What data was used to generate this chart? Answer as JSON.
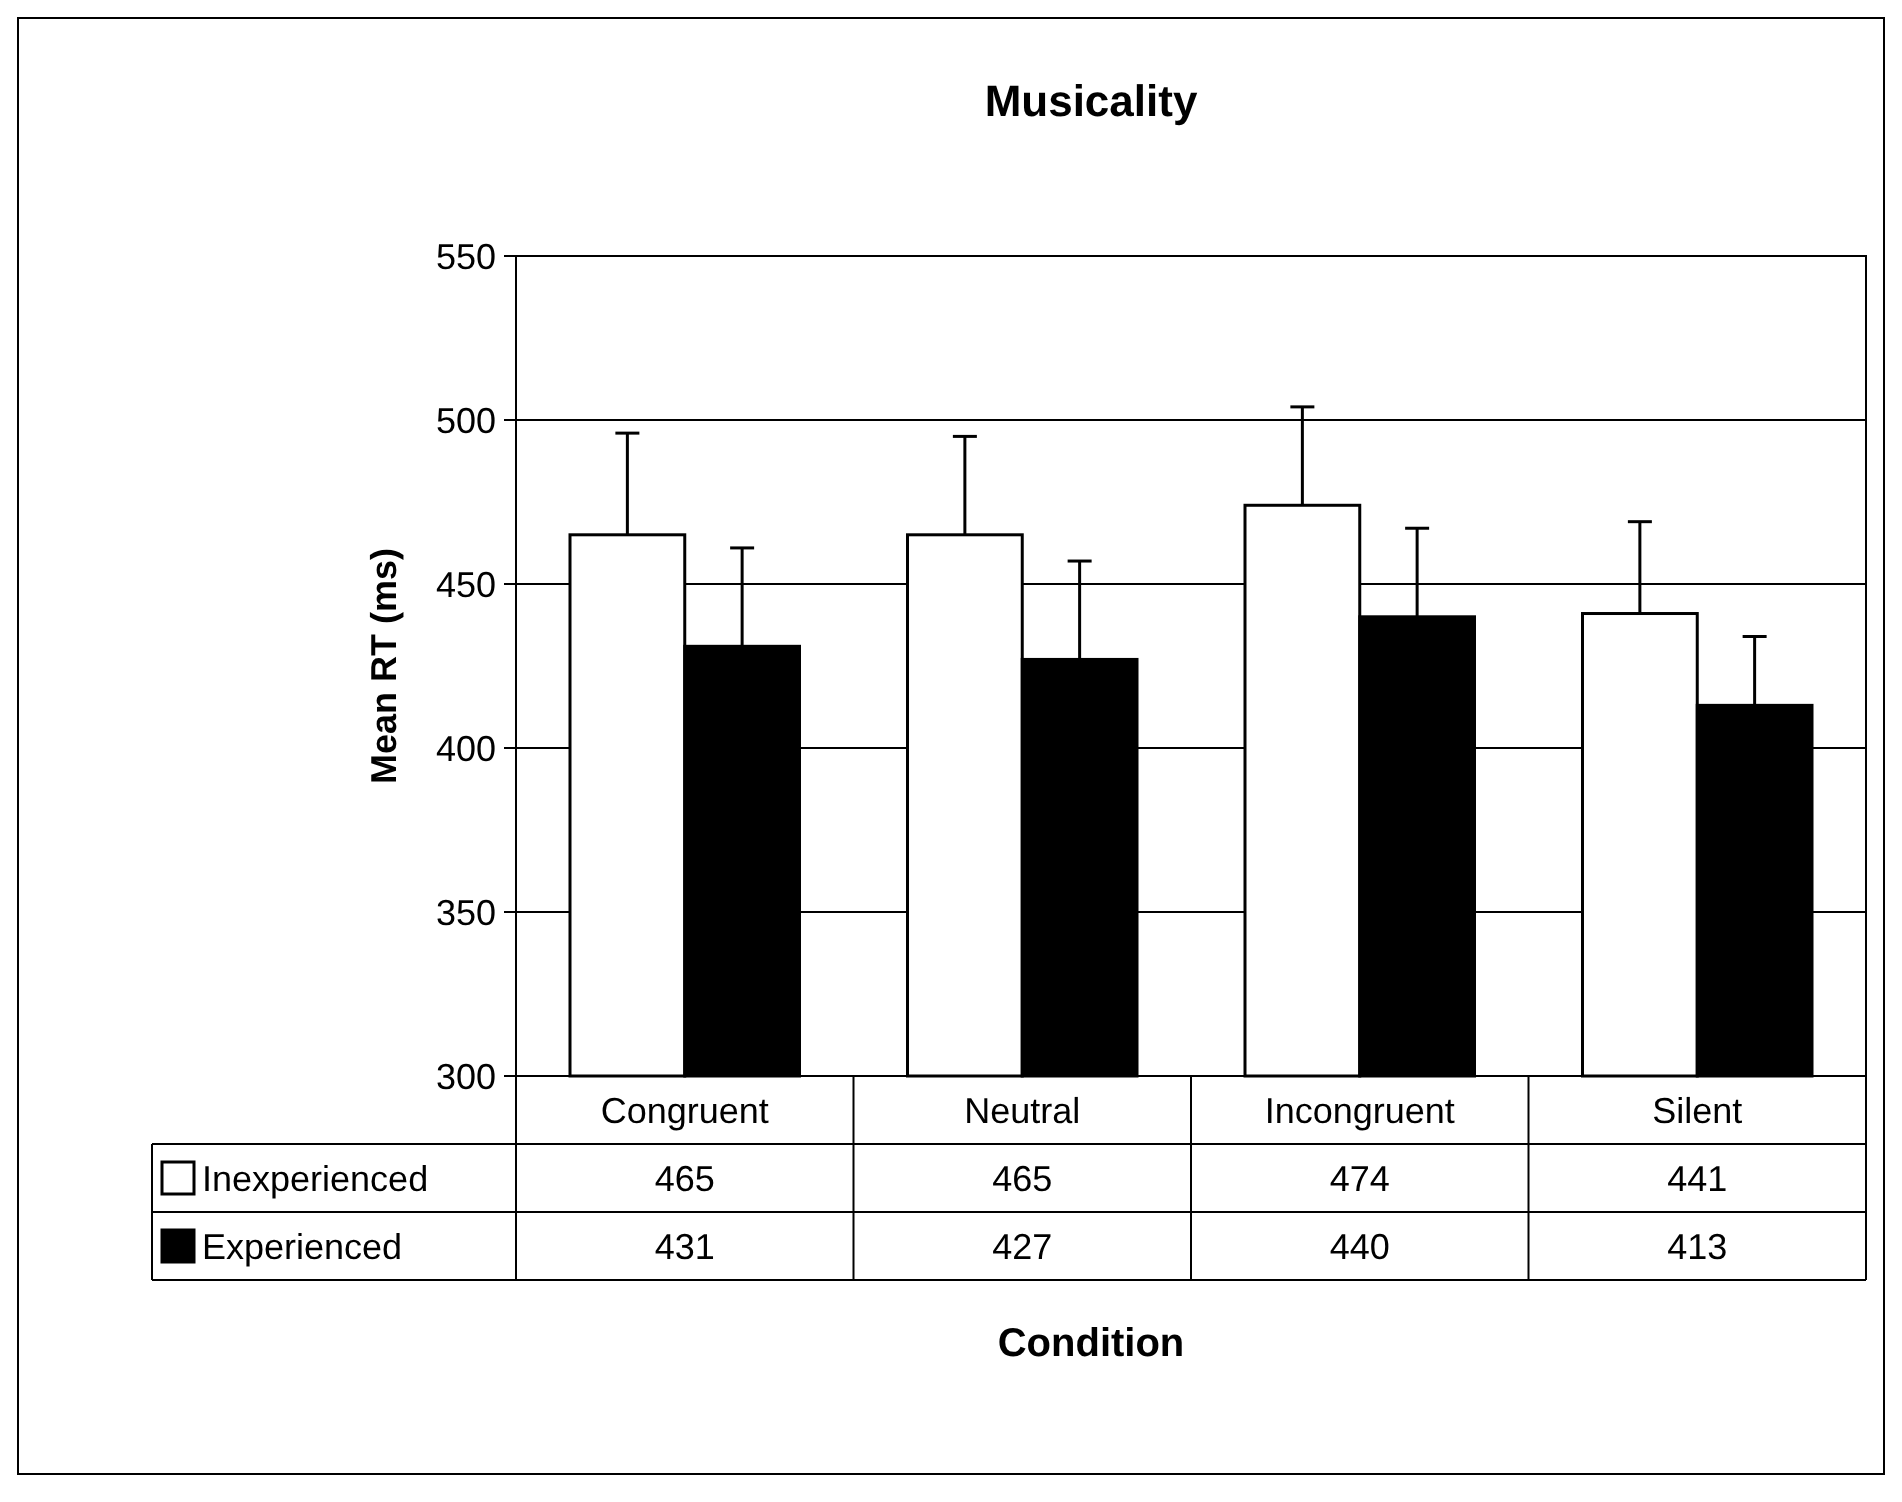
{
  "chart_data": {
    "type": "bar",
    "title": "Musicality",
    "xlabel": "Condition",
    "ylabel": "Mean RT (ms)",
    "categories": [
      "Congruent",
      "Neutral",
      "Incongruent",
      "Silent"
    ],
    "series": [
      {
        "name": "Inexperienced",
        "color": "#ffffff",
        "values": [
          465,
          465,
          474,
          441
        ],
        "errors": [
          [
            465,
            496
          ],
          [
            465,
            495
          ],
          [
            474,
            504
          ],
          [
            441,
            469
          ]
        ]
      },
      {
        "name": "Experienced",
        "color": "#000000",
        "values": [
          431,
          427,
          440,
          413
        ],
        "errors": [
          [
            431,
            461
          ],
          [
            427,
            457
          ],
          [
            440,
            467
          ],
          [
            413,
            434
          ]
        ]
      }
    ],
    "ylim": [
      300,
      550
    ],
    "yticks": [
      300,
      350,
      400,
      450,
      500,
      550
    ],
    "grid": "y",
    "legend": "bottom",
    "data_labels": true
  }
}
